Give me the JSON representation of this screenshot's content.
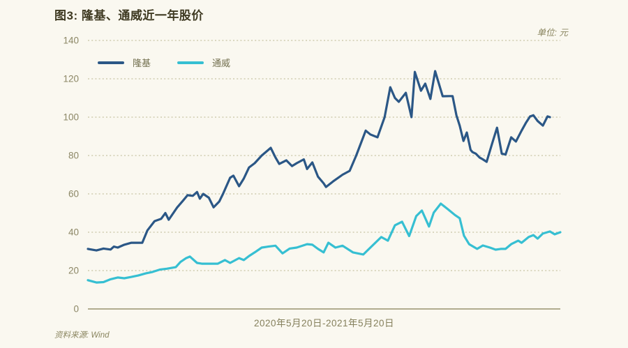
{
  "figure": {
    "title": "图3: 隆基、通威近一年股价",
    "unit_label": "单位: 元",
    "x_axis_label": "2020年5月20日-2021年5月20日",
    "source": "资料来源: Wind"
  },
  "legend": [
    {
      "label": "隆基",
      "color": "#2b5786"
    },
    {
      "label": "通威",
      "color": "#36bfd2"
    }
  ],
  "colors": {
    "background": "#faf8f0",
    "grid_dotted": "#c7c3a2",
    "axis_line": "#b0ac8e",
    "tick_text": "#8c8766",
    "series_longi": "#2b5786",
    "series_tongwei": "#36bfd2"
  },
  "chart_data": {
    "type": "line",
    "title": "图3: 隆基、通威近一年股价",
    "unit": "元",
    "x_axis_label": "2020年5月20日-2021年5月20日",
    "x_unit": "percent_of_period_2020-05-20_to_2021-05-20",
    "ylim": [
      0,
      140
    ],
    "yticks": [
      0,
      20,
      40,
      60,
      80,
      100,
      120,
      140
    ],
    "grid": "horizontal-dotted",
    "legend_position": "top-left-inside",
    "series": [
      {
        "name": "隆基",
        "color": "#2b5786",
        "points": [
          [
            0,
            31.3
          ],
          [
            1.8,
            30.5
          ],
          [
            3.3,
            31.5
          ],
          [
            4.8,
            31
          ],
          [
            5.5,
            32.5
          ],
          [
            6.3,
            32
          ],
          [
            7.7,
            33.5
          ],
          [
            9.2,
            34.5
          ],
          [
            11.5,
            34.5
          ],
          [
            12.6,
            41
          ],
          [
            14.1,
            45.8
          ],
          [
            15.5,
            47
          ],
          [
            16.4,
            50
          ],
          [
            17.1,
            46.5
          ],
          [
            18.9,
            53
          ],
          [
            20.1,
            56.4
          ],
          [
            21.1,
            59.3
          ],
          [
            22.2,
            59
          ],
          [
            23.1,
            61
          ],
          [
            23.7,
            57.5
          ],
          [
            24.4,
            60
          ],
          [
            25.6,
            58
          ],
          [
            26.6,
            53
          ],
          [
            27.8,
            56
          ],
          [
            28.6,
            60
          ],
          [
            30.1,
            68.4
          ],
          [
            30.8,
            69.5
          ],
          [
            32,
            64
          ],
          [
            33,
            68
          ],
          [
            34.1,
            73.8
          ],
          [
            35.3,
            76
          ],
          [
            36.8,
            80
          ],
          [
            38.7,
            84
          ],
          [
            39.7,
            79
          ],
          [
            40.5,
            75.6
          ],
          [
            42,
            77.5
          ],
          [
            43.2,
            74.5
          ],
          [
            44.2,
            76
          ],
          [
            45.7,
            78
          ],
          [
            46.4,
            73
          ],
          [
            47.5,
            76.4
          ],
          [
            48.7,
            69
          ],
          [
            49.9,
            65.5
          ],
          [
            50.4,
            63.6
          ],
          [
            51.9,
            66.5
          ],
          [
            53.9,
            70
          ],
          [
            55.4,
            72
          ],
          [
            56.8,
            80
          ],
          [
            58.8,
            93
          ],
          [
            59.8,
            91
          ],
          [
            61.3,
            89.5
          ],
          [
            62.8,
            100
          ],
          [
            64,
            115.6
          ],
          [
            65,
            110
          ],
          [
            65.8,
            108
          ],
          [
            67.3,
            112.7
          ],
          [
            68.5,
            100
          ],
          [
            69.2,
            123.6
          ],
          [
            70.5,
            113.8
          ],
          [
            71.4,
            117.5
          ],
          [
            72.5,
            109.5
          ],
          [
            73.5,
            124
          ],
          [
            75.1,
            110.9
          ],
          [
            76.5,
            111
          ],
          [
            77.2,
            111
          ],
          [
            78,
            101
          ],
          [
            78.7,
            95.6
          ],
          [
            79.5,
            87.6
          ],
          [
            80.2,
            92
          ],
          [
            81,
            83
          ],
          [
            81.4,
            81.8
          ],
          [
            82.1,
            81
          ],
          [
            82.9,
            79
          ],
          [
            83.6,
            78
          ],
          [
            84.4,
            76.7
          ],
          [
            85.6,
            86.5
          ],
          [
            86.6,
            94.5
          ],
          [
            87.6,
            81
          ],
          [
            88.4,
            80.5
          ],
          [
            89.6,
            89.5
          ],
          [
            90.6,
            87.3
          ],
          [
            91.8,
            93
          ],
          [
            92.7,
            97
          ],
          [
            93.6,
            100.4
          ],
          [
            94.3,
            101
          ],
          [
            95.2,
            98
          ],
          [
            96.3,
            95.6
          ],
          [
            97.3,
            100.4
          ],
          [
            97.8,
            100
          ]
        ]
      },
      {
        "name": "通威",
        "color": "#36bfd2",
        "points": [
          [
            0,
            15
          ],
          [
            1.8,
            13.8
          ],
          [
            3.3,
            14
          ],
          [
            4.8,
            15.5
          ],
          [
            6.3,
            16.4
          ],
          [
            7.7,
            16
          ],
          [
            9.2,
            16.7
          ],
          [
            10.7,
            17.5
          ],
          [
            12.2,
            18.5
          ],
          [
            13.7,
            19.3
          ],
          [
            15.2,
            20.5
          ],
          [
            16.7,
            21
          ],
          [
            18.6,
            21.8
          ],
          [
            19.6,
            24.5
          ],
          [
            20.8,
            26.5
          ],
          [
            21.6,
            27.3
          ],
          [
            23.1,
            24
          ],
          [
            24.1,
            23.6
          ],
          [
            25.6,
            23.6
          ],
          [
            27.5,
            23.6
          ],
          [
            29,
            25.5
          ],
          [
            30.1,
            24
          ],
          [
            32,
            26.5
          ],
          [
            33,
            25.5
          ],
          [
            34.1,
            27.6
          ],
          [
            35.3,
            29.5
          ],
          [
            36.8,
            32
          ],
          [
            38.2,
            32.5
          ],
          [
            39.7,
            33
          ],
          [
            41.2,
            29
          ],
          [
            42.7,
            31.5
          ],
          [
            44.2,
            32
          ],
          [
            46.4,
            33.8
          ],
          [
            47.5,
            33.5
          ],
          [
            48.7,
            31.3
          ],
          [
            49.9,
            29.5
          ],
          [
            50.9,
            34.5
          ],
          [
            52.4,
            32
          ],
          [
            53.9,
            33
          ],
          [
            56.1,
            29.5
          ],
          [
            58.3,
            28.4
          ],
          [
            59.8,
            32
          ],
          [
            62.1,
            37.5
          ],
          [
            63.5,
            35.6
          ],
          [
            65,
            43.6
          ],
          [
            66.5,
            45.5
          ],
          [
            68,
            38
          ],
          [
            69.5,
            48.4
          ],
          [
            70.7,
            51.3
          ],
          [
            72.2,
            43
          ],
          [
            73.2,
            50.2
          ],
          [
            74.7,
            54.9
          ],
          [
            76.2,
            52
          ],
          [
            77.7,
            49
          ],
          [
            78.7,
            47.3
          ],
          [
            79.6,
            38.2
          ],
          [
            80.7,
            33.8
          ],
          [
            82.4,
            31.3
          ],
          [
            83.6,
            33.1
          ],
          [
            85.1,
            32
          ],
          [
            86.3,
            30.9
          ],
          [
            87.4,
            31.3
          ],
          [
            88.4,
            31.3
          ],
          [
            89.6,
            33.8
          ],
          [
            91.1,
            35.6
          ],
          [
            91.8,
            34.5
          ],
          [
            93.3,
            37.5
          ],
          [
            94.3,
            38.5
          ],
          [
            95.2,
            36.7
          ],
          [
            96.3,
            39.3
          ],
          [
            97.8,
            40.4
          ],
          [
            98.8,
            38.9
          ],
          [
            100,
            40
          ]
        ]
      }
    ]
  }
}
